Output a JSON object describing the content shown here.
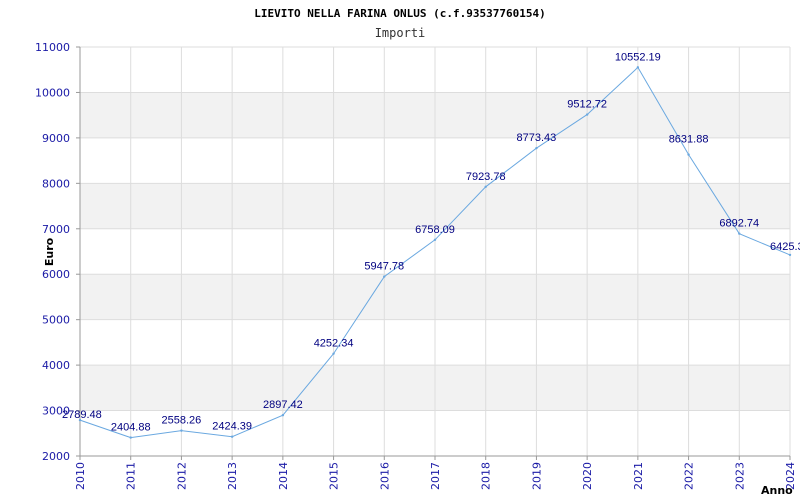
{
  "chart_data": {
    "type": "line",
    "title": "LIEVITO NELLA FARINA ONLUS (c.f.93537760154)",
    "subtitle": "Importi",
    "xlabel": "Anno",
    "ylabel": "Euro",
    "ylim": [
      2000,
      11000
    ],
    "yticks": [
      "2000",
      "3000",
      "4000",
      "5000",
      "6000",
      "7000",
      "8000",
      "9000",
      "10000",
      "11000"
    ],
    "grid": true,
    "categories": [
      "2010",
      "2011",
      "2012",
      "2013",
      "2014",
      "2015",
      "2016",
      "2017",
      "2018",
      "2019",
      "2020",
      "2021",
      "2022",
      "2023",
      "2024"
    ],
    "series": [
      {
        "values": [
          2789.48,
          2404.88,
          2558.26,
          2424.39,
          2897.42,
          4252.34,
          5947.78,
          6758.09,
          7923.78,
          8773.43,
          9512.72,
          10552.19,
          8631.88,
          6892.74,
          6425.3
        ],
        "labels": [
          "2789.48",
          "2404.88",
          "2558.26",
          "2424.39",
          "2897.42",
          "4252.34",
          "5947.78",
          "6758.09",
          "7923.78",
          "8773.43",
          "9512.72",
          "10552.19",
          "8631.88",
          "6892.74",
          "6425.3"
        ]
      }
    ],
    "colors": {
      "line": "#6aa8e0",
      "band": "#f2f2f2",
      "grid": "#dddddd",
      "tick": "#1a1aa6",
      "label": "#000080"
    }
  }
}
